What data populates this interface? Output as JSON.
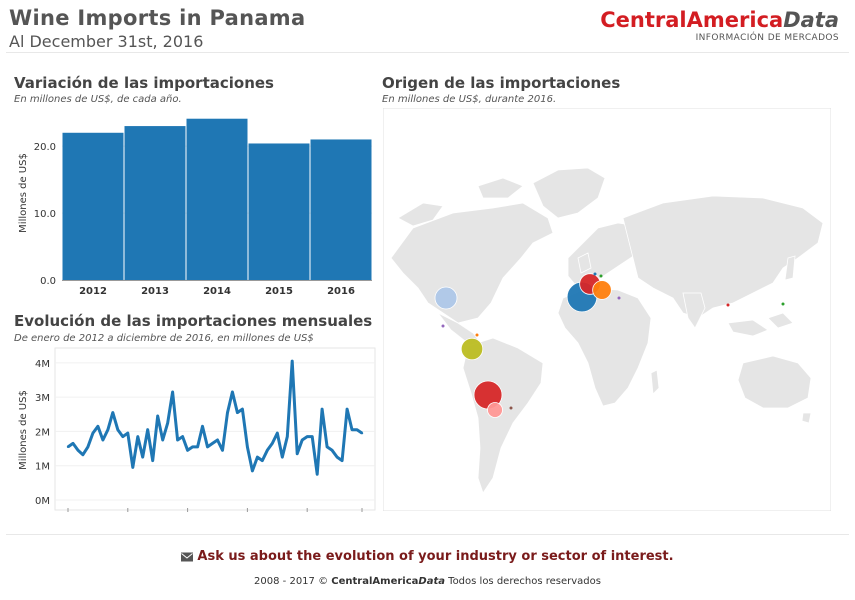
{
  "header": {
    "title": "Wine Imports in Panama",
    "subtitle": "Al December 31st, 2016",
    "brand_main": "CentralAmerica",
    "brand_italic": "Data",
    "brand_tagline": "INFORMACIÓN DE MERCADOS"
  },
  "colors": {
    "bar": "#1f77b4",
    "line": "#1f77b4",
    "brand_red": "#d31d22",
    "land": "#e5e5e5",
    "footer_link": "#7a1b1b"
  },
  "bar_section": {
    "title": "Variación de las importaciones",
    "subtitle": "En millones de US$, de cada año."
  },
  "line_section": {
    "title": "Evolución de las importaciones mensuales",
    "subtitle": "De enero de 2012 a diciembre de 2016, en millones de US$"
  },
  "map_section": {
    "title": "Origen de las importaciones",
    "subtitle": "En millones de US$, durante 2016."
  },
  "chart_data": [
    {
      "type": "bar",
      "categories": [
        "2012",
        "2013",
        "2014",
        "2015",
        "2016"
      ],
      "values": [
        22.0,
        23.0,
        24.1,
        20.4,
        21.0
      ],
      "ylabel": "Millones de US$",
      "yticks": [
        "0.0",
        "10.0",
        "20.0"
      ],
      "ylim": [
        0,
        26
      ],
      "grid": true
    },
    {
      "type": "line",
      "x": [
        "2012-01",
        "2012-02",
        "2012-03",
        "2012-04",
        "2012-05",
        "2012-06",
        "2012-07",
        "2012-08",
        "2012-09",
        "2012-10",
        "2012-11",
        "2012-12",
        "2013-01",
        "2013-02",
        "2013-03",
        "2013-04",
        "2013-05",
        "2013-06",
        "2013-07",
        "2013-08",
        "2013-09",
        "2013-10",
        "2013-11",
        "2013-12",
        "2014-01",
        "2014-02",
        "2014-03",
        "2014-04",
        "2014-05",
        "2014-06",
        "2014-07",
        "2014-08",
        "2014-09",
        "2014-10",
        "2014-11",
        "2014-12",
        "2015-01",
        "2015-02",
        "2015-03",
        "2015-04",
        "2015-05",
        "2015-06",
        "2015-07",
        "2015-08",
        "2015-09",
        "2015-10",
        "2015-11",
        "2015-12",
        "2016-01",
        "2016-02",
        "2016-03",
        "2016-04",
        "2016-05",
        "2016-06",
        "2016-07",
        "2016-08",
        "2016-09",
        "2016-10",
        "2016-11",
        "2016-12"
      ],
      "values": [
        1.55,
        1.65,
        1.45,
        1.32,
        1.55,
        1.95,
        2.15,
        1.75,
        2.05,
        2.55,
        2.05,
        1.85,
        1.95,
        0.95,
        1.85,
        1.25,
        2.05,
        1.15,
        2.45,
        1.75,
        2.25,
        3.15,
        1.75,
        1.85,
        1.45,
        1.55,
        1.55,
        2.15,
        1.55,
        1.65,
        1.75,
        1.45,
        2.55,
        3.15,
        2.55,
        2.65,
        1.55,
        0.85,
        1.25,
        1.15,
        1.45,
        1.65,
        1.95,
        1.25,
        1.85,
        4.05,
        1.35,
        1.75,
        1.85,
        1.85,
        0.75,
        2.65,
        1.55,
        1.45,
        1.25,
        1.15,
        2.65,
        2.05,
        2.05,
        1.95
      ],
      "ylabel": "Millones de US$",
      "yticks": [
        "0M",
        "1M",
        "2M",
        "3M",
        "4M"
      ],
      "ylim": [
        0,
        4.2
      ],
      "grid": true
    }
  ],
  "map_bubbles": [
    {
      "country": "España",
      "value": 4.2,
      "color": "#1f77b4"
    },
    {
      "country": "Chile",
      "value": 3.6,
      "color": "#d62728"
    },
    {
      "country": "Argentina",
      "value": 0.6,
      "color": "#ff9896"
    },
    {
      "country": "Francia",
      "value": 1.6,
      "color": "#d62728"
    },
    {
      "country": "Italia",
      "value": 1.2,
      "color": "#ff7f0e"
    },
    {
      "country": "Estados Unidos",
      "value": 1.9,
      "color": "#aec7e8"
    },
    {
      "country": "Colombia",
      "value": 1.8,
      "color": "#bcbd22"
    }
  ],
  "footer": {
    "envelope_icon": "envelope-icon",
    "ask": "Ask us about the evolution of your industry or sector of interest.",
    "copy_prefix": "2008 - 2017 ©",
    "copy_brand_main": "CentralAmerica",
    "copy_brand_italic": "Data",
    "copy_suffix": "Todos los derechos reservados"
  }
}
